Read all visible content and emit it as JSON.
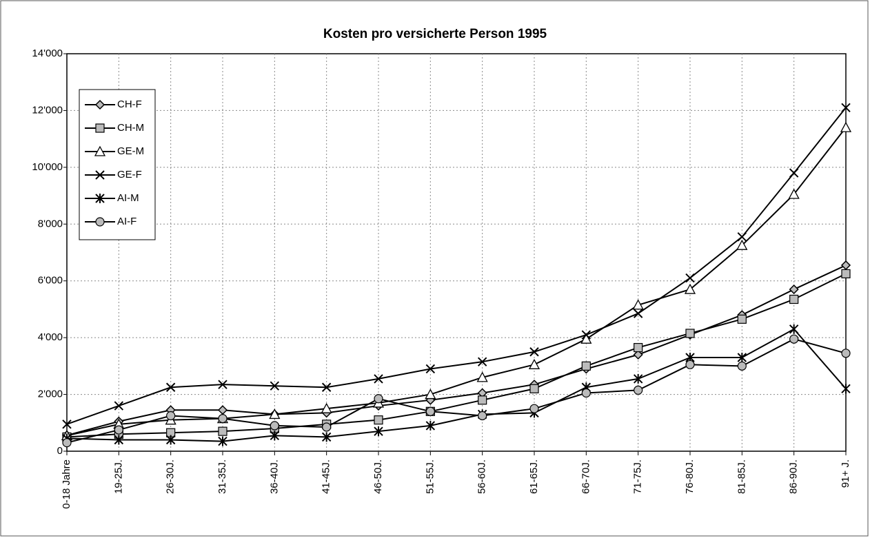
{
  "chart_data": {
    "type": "line",
    "title": "Kosten pro versicherte Person 1995",
    "categories": [
      "0-18 Jahre",
      "19-25J.",
      "26-30J.",
      "31-35J.",
      "36-40J.",
      "41-45J.",
      "46-50J.",
      "51-55J.",
      "56-60J.",
      "61-65J.",
      "66-70J.",
      "71-75J.",
      "76-80J.",
      "81-85J.",
      "86-90J.",
      "91+ J."
    ],
    "series": [
      {
        "name": "CH-F",
        "color": "#000000",
        "marker": "diamond",
        "values": [
          560,
          1050,
          1450,
          1450,
          1300,
          1350,
          1600,
          1800,
          2050,
          2350,
          2900,
          3400,
          4100,
          4800,
          5700,
          6550
        ]
      },
      {
        "name": "CH-M",
        "color": "#000000",
        "marker": "square",
        "values": [
          500,
          600,
          650,
          700,
          800,
          950,
          1100,
          1400,
          1800,
          2200,
          3000,
          3650,
          4150,
          4650,
          5350,
          6250
        ]
      },
      {
        "name": "GE-M",
        "color": "#000000",
        "marker": "triangle",
        "values": [
          550,
          950,
          1100,
          1150,
          1300,
          1500,
          1700,
          2000,
          2600,
          3050,
          3950,
          5150,
          5700,
          7250,
          9050,
          11400
        ]
      },
      {
        "name": "GE-F",
        "color": "#000000",
        "marker": "x",
        "values": [
          950,
          1600,
          2250,
          2350,
          2300,
          2250,
          2550,
          2900,
          3150,
          3500,
          4100,
          4850,
          6100,
          7550,
          9800,
          12100
        ]
      },
      {
        "name": "AI-M",
        "color": "#000000",
        "marker": "asterisk",
        "values": [
          450,
          400,
          400,
          350,
          550,
          500,
          700,
          900,
          1300,
          1350,
          2250,
          2550,
          3300,
          3300,
          4300,
          2200
        ]
      },
      {
        "name": "AI-F",
        "color": "#000000",
        "marker": "circle",
        "values": [
          300,
          750,
          1250,
          1150,
          900,
          850,
          1850,
          1400,
          1250,
          1500,
          2050,
          2150,
          3050,
          3000,
          3950,
          3450
        ]
      }
    ],
    "ylim": [
      0,
      14000
    ],
    "yticks": [
      0,
      {
        "value": 2000,
        "label": "2'000"
      },
      {
        "value": 4000,
        "label": "4'000"
      },
      {
        "value": 6000,
        "label": "6'000"
      },
      {
        "value": 8000,
        "label": "8'000"
      },
      {
        "value": 10000,
        "label": "10'000"
      },
      {
        "value": 12000,
        "label": "12'000"
      },
      {
        "value": 14000,
        "label": "14'000"
      }
    ],
    "grid": true,
    "legend": "upper-left",
    "marker_fill": "#bbbbbb"
  }
}
